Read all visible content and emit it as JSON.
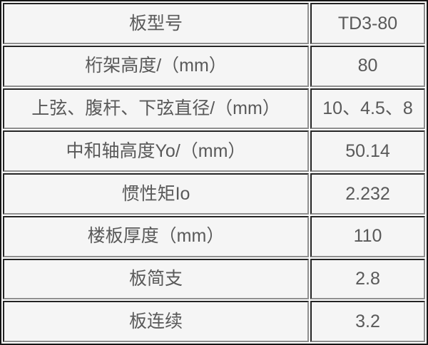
{
  "table": {
    "rows": [
      {
        "label": "板型号",
        "value": "TD3-80"
      },
      {
        "label": "桁架高度/（mm）",
        "value": "80"
      },
      {
        "label": "上弦、腹杆、下弦直径/（mm）",
        "value": "10、4.5、8"
      },
      {
        "label": "中和轴高度Yo/（mm）",
        "value": "50.14"
      },
      {
        "label": "惯性矩Io",
        "value": "2.232"
      },
      {
        "label": "楼板厚度（mm）",
        "value": "110"
      },
      {
        "label": "板简支",
        "value": "2.8"
      },
      {
        "label": "板连续",
        "value": "3.2"
      }
    ],
    "colors": {
      "cell_background": "#f5f5f5",
      "border_dark": "#1f1f1f",
      "border_light": "#8f8f8f",
      "spacing_gap": "#ffffff",
      "text": "#595959"
    }
  }
}
